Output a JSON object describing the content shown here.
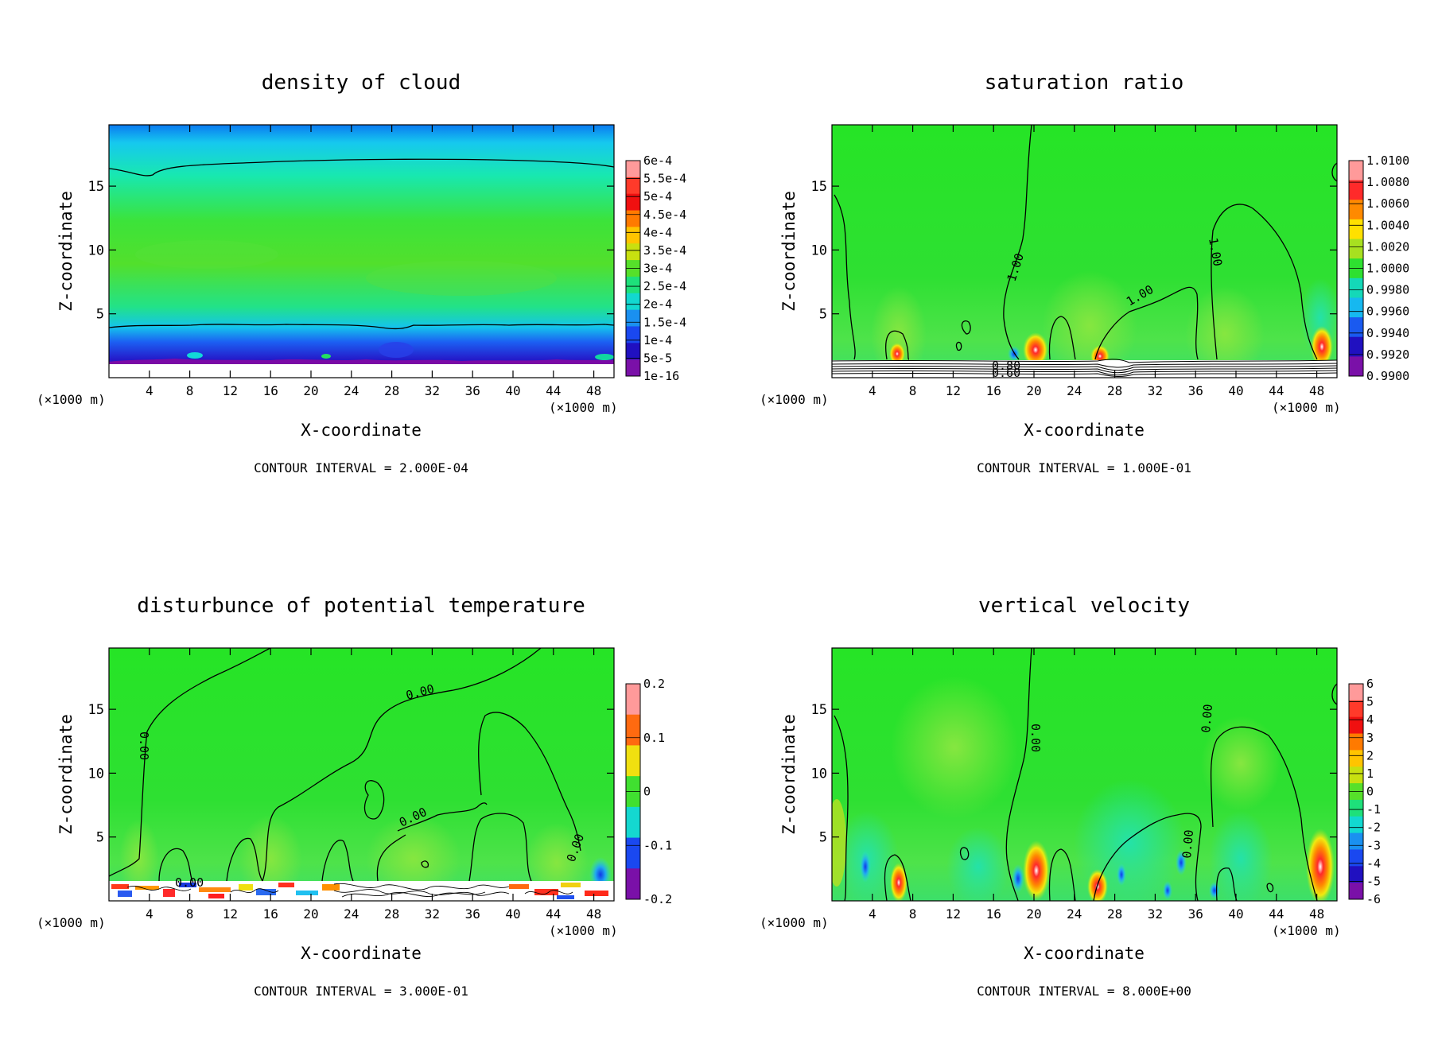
{
  "chart_data": [
    {
      "type": "heatmap",
      "title": "density of cloud",
      "xlabel": "X-coordinate",
      "ylabel": "Z-coordinate",
      "x_unit": "(×1000 m)",
      "x_ticks": [
        4,
        8,
        12,
        16,
        20,
        24,
        28,
        32,
        36,
        40,
        44,
        48
      ],
      "y_ticks": [
        5,
        10,
        15
      ],
      "xlim": [
        0,
        50
      ],
      "ylim": [
        0,
        19.8
      ],
      "contour_interval": "CONTOUR INTERVAL = 2.000E-04",
      "colorbar": [
        "6e-4",
        "5.5e-4",
        "5e-4",
        "4.5e-4",
        "4e-4",
        "3.5e-4",
        "3e-4",
        "2.5e-4",
        "2e-4",
        "1.5e-4",
        "1e-4",
        "5e-5",
        "1e-16"
      ],
      "contour_labels": []
    },
    {
      "type": "heatmap",
      "title": "saturation ratio",
      "xlabel": "X-coordinate",
      "ylabel": "Z-coordinate",
      "x_unit": "(×1000 m)",
      "x_ticks": [
        4,
        8,
        12,
        16,
        20,
        24,
        28,
        32,
        36,
        40,
        44,
        48
      ],
      "y_ticks": [
        5,
        10,
        15
      ],
      "xlim": [
        0,
        50
      ],
      "ylim": [
        0,
        19.8
      ],
      "contour_interval": "CONTOUR INTERVAL = 1.000E-01",
      "colorbar": [
        "1.0100",
        "1.0080",
        "1.0060",
        "1.0040",
        "1.0020",
        "1.0000",
        "0.9980",
        "0.9960",
        "0.9940",
        "0.9920",
        "0.9900"
      ],
      "contour_labels": [
        "1.00",
        "1.00",
        "1.00",
        "0.80",
        "0.60"
      ]
    },
    {
      "type": "heatmap",
      "title": "disturbunce of potential temperature",
      "xlabel": "X-coordinate",
      "ylabel": "Z-coordinate",
      "x_unit": "(×1000 m)",
      "x_ticks": [
        4,
        8,
        12,
        16,
        20,
        24,
        28,
        32,
        36,
        40,
        44,
        48
      ],
      "y_ticks": [
        5,
        10,
        15
      ],
      "xlim": [
        0,
        50
      ],
      "ylim": [
        0,
        19.8
      ],
      "contour_interval": "CONTOUR INTERVAL = 3.000E-01",
      "colorbar": [
        "0.2",
        "0.1",
        "0",
        "-0.1",
        "-0.2"
      ],
      "contour_labels": [
        "0.00",
        "0.00",
        "0.00",
        "0.00",
        "0.00"
      ]
    },
    {
      "type": "heatmap",
      "title": "vertical velocity",
      "xlabel": "X-coordinate",
      "ylabel": "Z-coordinate",
      "x_unit": "(×1000 m)",
      "x_ticks": [
        4,
        8,
        12,
        16,
        20,
        24,
        28,
        32,
        36,
        40,
        44,
        48
      ],
      "y_ticks": [
        5,
        10,
        15
      ],
      "xlim": [
        0,
        50
      ],
      "ylim": [
        0,
        19.8
      ],
      "contour_interval": "CONTOUR INTERVAL = 8.000E+00",
      "colorbar": [
        "6",
        "5",
        "4",
        "3",
        "2",
        "1",
        "0",
        "-1",
        "-2",
        "-3",
        "-4",
        "-5",
        "-6"
      ],
      "contour_labels": [
        "0.00",
        "0.00",
        "0.00"
      ]
    }
  ]
}
